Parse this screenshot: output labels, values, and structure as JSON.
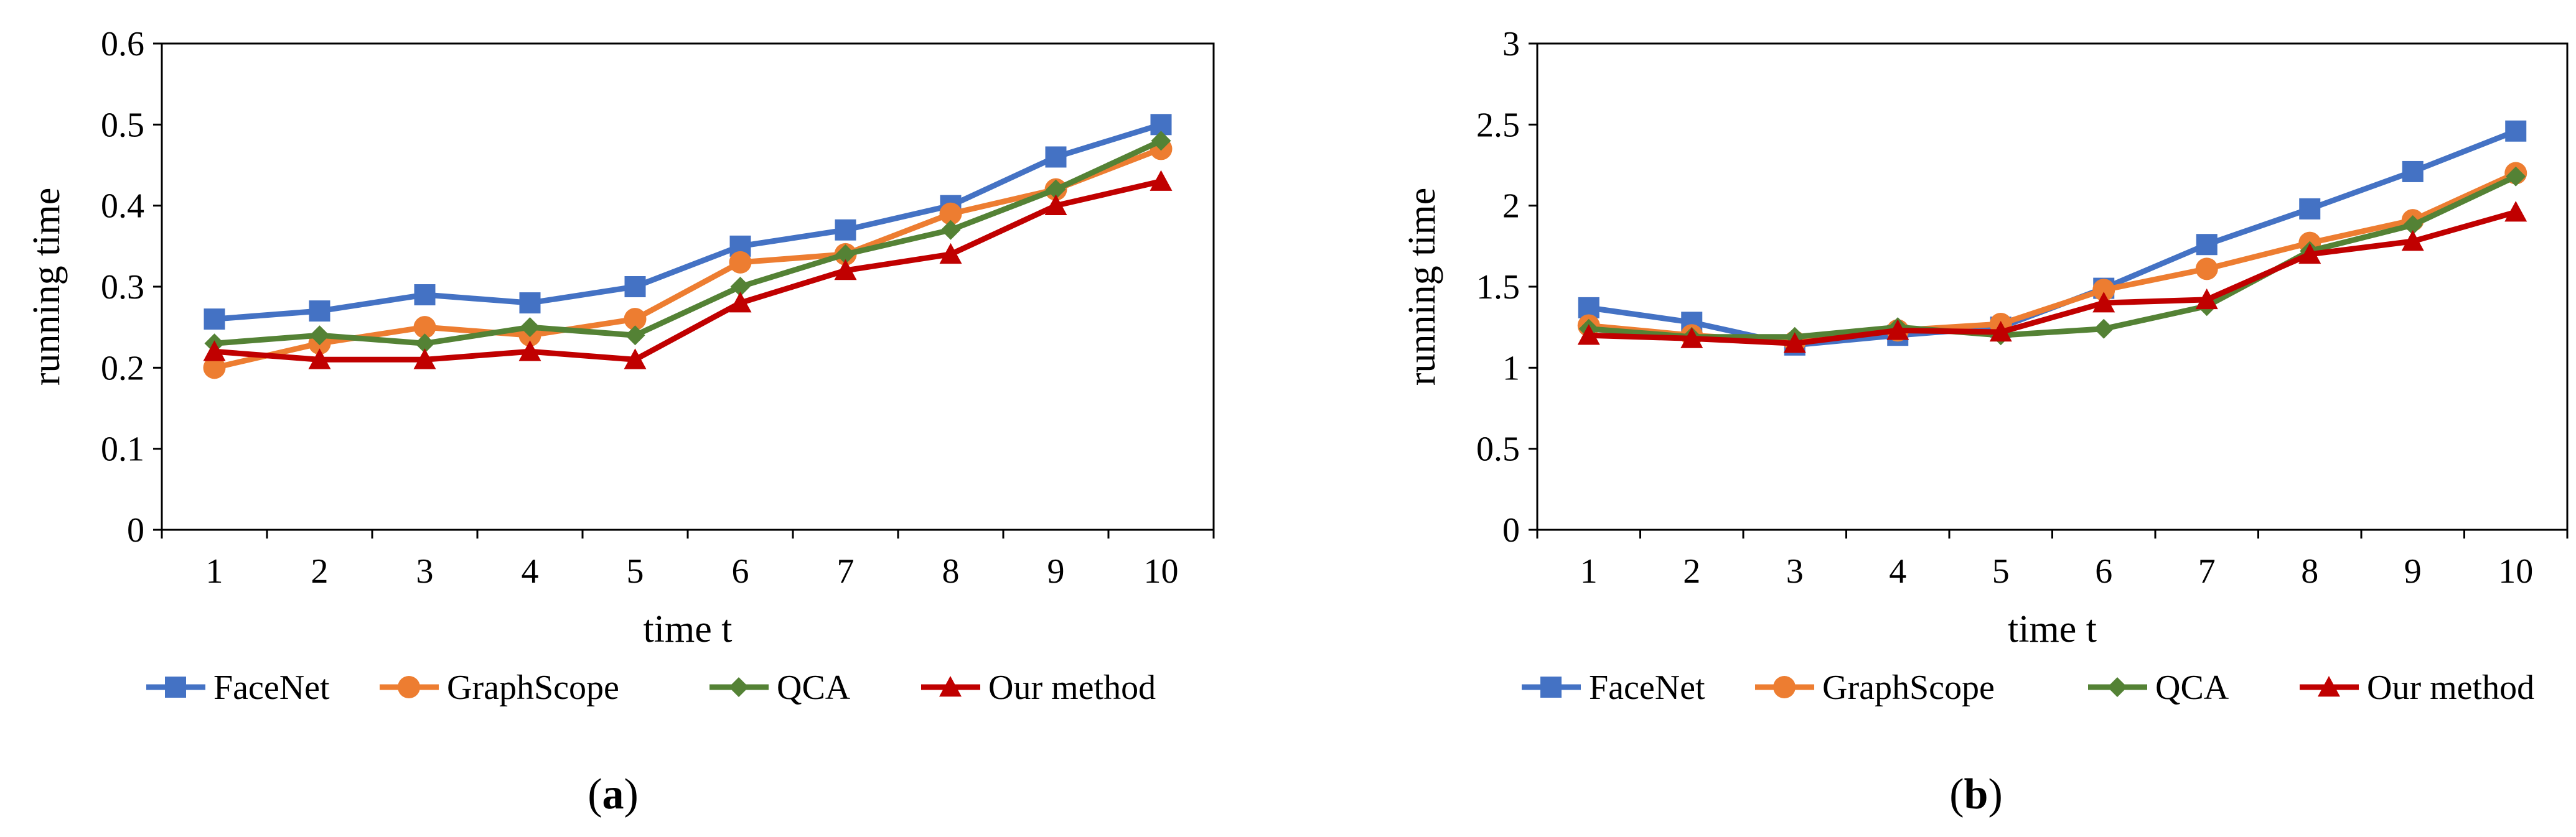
{
  "chart_data": [
    {
      "type": "line",
      "panel": "a",
      "caption_open": "(",
      "caption_letter": "a",
      "caption_close": ")",
      "title": "",
      "xlabel": "time t",
      "ylabel": "running time",
      "x": [
        1,
        2,
        3,
        4,
        5,
        6,
        7,
        8,
        9,
        10
      ],
      "ylim": [
        0,
        0.6
      ],
      "yticks": [
        "0",
        "0.1",
        "0.2",
        "0.3",
        "0.4",
        "0.5",
        "0.6"
      ],
      "grid": false,
      "legend_position": "bottom",
      "series": [
        {
          "name": "FaceNet",
          "color": "#4472C4",
          "marker": "square",
          "values": [
            0.26,
            0.27,
            0.29,
            0.28,
            0.3,
            0.35,
            0.37,
            0.4,
            0.46,
            0.5
          ]
        },
        {
          "name": "GraphScope",
          "color": "#ED7D31",
          "marker": "circle",
          "values": [
            0.2,
            0.23,
            0.25,
            0.24,
            0.26,
            0.33,
            0.34,
            0.39,
            0.42,
            0.47
          ]
        },
        {
          "name": "QCA",
          "color": "#548235",
          "marker": "diamond",
          "values": [
            0.23,
            0.24,
            0.23,
            0.25,
            0.24,
            0.3,
            0.34,
            0.37,
            0.42,
            0.48
          ]
        },
        {
          "name": "Our method",
          "color": "#C00000",
          "marker": "triangle",
          "values": [
            0.22,
            0.21,
            0.21,
            0.22,
            0.21,
            0.28,
            0.32,
            0.34,
            0.4,
            0.43
          ]
        }
      ]
    },
    {
      "type": "line",
      "panel": "b",
      "caption_open": "(",
      "caption_letter": "b",
      "caption_close": ")",
      "title": "",
      "xlabel": "time t",
      "ylabel": "running time",
      "x": [
        1,
        2,
        3,
        4,
        5,
        6,
        7,
        8,
        9,
        10
      ],
      "ylim": [
        0,
        3
      ],
      "yticks": [
        "0",
        "0.5",
        "1",
        "1.5",
        "2",
        "2.5",
        "3"
      ],
      "grid": false,
      "legend_position": "bottom",
      "series": [
        {
          "name": "FaceNet",
          "color": "#4472C4",
          "marker": "square",
          "values": [
            1.37,
            1.28,
            1.14,
            1.2,
            1.25,
            1.49,
            1.76,
            1.98,
            2.21,
            2.46
          ]
        },
        {
          "name": "GraphScope",
          "color": "#ED7D31",
          "marker": "circle",
          "values": [
            1.26,
            1.2,
            1.16,
            1.23,
            1.27,
            1.48,
            1.61,
            1.77,
            1.91,
            2.2
          ]
        },
        {
          "name": "QCA",
          "color": "#548235",
          "marker": "diamond",
          "values": [
            1.24,
            1.19,
            1.19,
            1.25,
            1.2,
            1.24,
            1.38,
            1.72,
            1.88,
            2.18
          ]
        },
        {
          "name": "Our method",
          "color": "#C00000",
          "marker": "triangle",
          "values": [
            1.2,
            1.18,
            1.15,
            1.23,
            1.22,
            1.4,
            1.42,
            1.7,
            1.78,
            1.96
          ]
        }
      ]
    }
  ]
}
